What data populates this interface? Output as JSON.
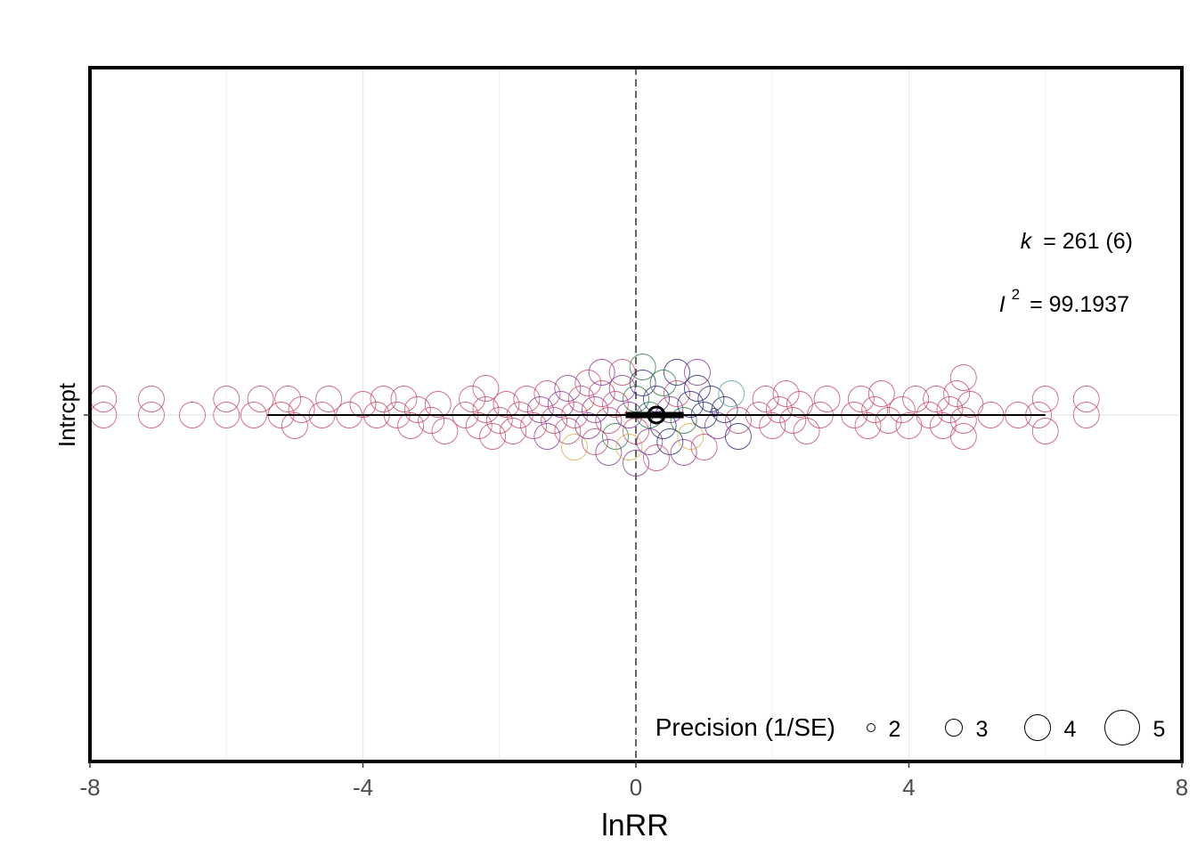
{
  "chart_data": {
    "type": "scatter",
    "subtype": "orchard-plot",
    "xlabel": "lnRR",
    "ylabel": "Intrcpt",
    "xlim": [
      -8,
      8
    ],
    "x_ticks": [
      "-8",
      "-4",
      "0",
      "4",
      "8"
    ],
    "y_categories": [
      "Intrcpt"
    ],
    "reference_line_x": 0,
    "grid": true,
    "estimate": {
      "mean": 0.3,
      "confidence_interval": [
        -0.15,
        0.7
      ],
      "prediction_interval": [
        -5.4,
        6.0
      ]
    },
    "annotations": {
      "k_label": "k",
      "k_value": "= 261 (6)",
      "i2_label": "I",
      "i2_sup": "2",
      "i2_value": "= 99.1937"
    },
    "legend": {
      "title": "Precision (1/SE)",
      "placement": "bottom-right",
      "sizes": [
        2,
        3,
        4,
        5
      ],
      "labels": [
        "2",
        "3",
        "4",
        "5"
      ]
    },
    "point_colors": [
      "#c94a6a",
      "#8b3a9c",
      "#2a2a7a",
      "#2e7d46",
      "#d4b24a",
      "#5aa0a0"
    ],
    "points": [
      {
        "x": -7.8,
        "p": 4,
        "c": 0
      },
      {
        "x": -7.8,
        "p": 4,
        "c": 0
      },
      {
        "x": -7.1,
        "p": 4,
        "c": 0
      },
      {
        "x": -7.1,
        "p": 4,
        "c": 0
      },
      {
        "x": -6.5,
        "p": 4,
        "c": 0
      },
      {
        "x": -6.0,
        "p": 4,
        "c": 0
      },
      {
        "x": -6.0,
        "p": 4,
        "c": 0
      },
      {
        "x": -5.6,
        "p": 4,
        "c": 0
      },
      {
        "x": -5.5,
        "p": 4,
        "c": 0
      },
      {
        "x": -5.2,
        "p": 4,
        "c": 0
      },
      {
        "x": -5.1,
        "p": 4,
        "c": 0
      },
      {
        "x": -5.0,
        "p": 4,
        "c": 0
      },
      {
        "x": -4.9,
        "p": 4,
        "c": 0
      },
      {
        "x": -4.6,
        "p": 4,
        "c": 0
      },
      {
        "x": -4.5,
        "p": 4,
        "c": 0
      },
      {
        "x": -4.2,
        "p": 4,
        "c": 0
      },
      {
        "x": -4.0,
        "p": 4,
        "c": 0
      },
      {
        "x": -3.8,
        "p": 4,
        "c": 0
      },
      {
        "x": -3.7,
        "p": 4,
        "c": 0
      },
      {
        "x": -3.5,
        "p": 4,
        "c": 0
      },
      {
        "x": -3.4,
        "p": 4,
        "c": 0
      },
      {
        "x": -3.3,
        "p": 4,
        "c": 0
      },
      {
        "x": -3.2,
        "p": 4,
        "c": 0
      },
      {
        "x": -3.0,
        "p": 4,
        "c": 0
      },
      {
        "x": -2.9,
        "p": 4,
        "c": 0
      },
      {
        "x": -2.8,
        "p": 4,
        "c": 0
      },
      {
        "x": -2.5,
        "p": 4,
        "c": 0
      },
      {
        "x": -2.4,
        "p": 4,
        "c": 0
      },
      {
        "x": -2.3,
        "p": 4,
        "c": 0
      },
      {
        "x": -2.2,
        "p": 4,
        "c": 0
      },
      {
        "x": -2.2,
        "p": 4,
        "c": 0
      },
      {
        "x": -2.1,
        "p": 4,
        "c": 0
      },
      {
        "x": -2.0,
        "p": 4,
        "c": 0
      },
      {
        "x": -1.9,
        "p": 4,
        "c": 0
      },
      {
        "x": -1.8,
        "p": 4,
        "c": 0
      },
      {
        "x": -1.7,
        "p": 4,
        "c": 0
      },
      {
        "x": -1.6,
        "p": 4,
        "c": 0
      },
      {
        "x": -1.5,
        "p": 4,
        "c": 0
      },
      {
        "x": -1.4,
        "p": 4,
        "c": 1
      },
      {
        "x": -1.3,
        "p": 4,
        "c": 0
      },
      {
        "x": -1.3,
        "p": 4,
        "c": 1
      },
      {
        "x": -1.2,
        "p": 4,
        "c": 0
      },
      {
        "x": -1.1,
        "p": 4,
        "c": 1
      },
      {
        "x": -1.0,
        "p": 4,
        "c": 0
      },
      {
        "x": -1.0,
        "p": 4,
        "c": 1
      },
      {
        "x": -0.9,
        "p": 4,
        "c": 0
      },
      {
        "x": -0.9,
        "p": 4,
        "c": 4
      },
      {
        "x": -0.8,
        "p": 4,
        "c": 0
      },
      {
        "x": -0.7,
        "p": 4,
        "c": 1
      },
      {
        "x": -0.7,
        "p": 4,
        "c": 0
      },
      {
        "x": -0.6,
        "p": 4,
        "c": 1
      },
      {
        "x": -0.6,
        "p": 4,
        "c": 0
      },
      {
        "x": -0.5,
        "p": 4,
        "c": 0
      },
      {
        "x": -0.5,
        "p": 4,
        "c": 1
      },
      {
        "x": -0.4,
        "p": 4,
        "c": 0
      },
      {
        "x": -0.4,
        "p": 4,
        "c": 1
      },
      {
        "x": -0.3,
        "p": 4,
        "c": 0
      },
      {
        "x": -0.3,
        "p": 4,
        "c": 3
      },
      {
        "x": -0.2,
        "p": 4,
        "c": 1
      },
      {
        "x": -0.2,
        "p": 4,
        "c": 0
      },
      {
        "x": -0.1,
        "p": 4,
        "c": 1
      },
      {
        "x": -0.1,
        "p": 4,
        "c": 4
      },
      {
        "x": 0.0,
        "p": 4,
        "c": 3
      },
      {
        "x": 0.0,
        "p": 4,
        "c": 0
      },
      {
        "x": 0.0,
        "p": 4,
        "c": 1
      },
      {
        "x": 0.1,
        "p": 4,
        "c": 2
      },
      {
        "x": 0.1,
        "p": 4,
        "c": 3
      },
      {
        "x": 0.2,
        "p": 4,
        "c": 3
      },
      {
        "x": 0.2,
        "p": 4,
        "c": 1
      },
      {
        "x": 0.3,
        "p": 4,
        "c": 2
      },
      {
        "x": 0.3,
        "p": 4,
        "c": 0
      },
      {
        "x": 0.35,
        "p": 2,
        "c": 1
      },
      {
        "x": 0.4,
        "p": 4,
        "c": 2
      },
      {
        "x": 0.4,
        "p": 4,
        "c": 3
      },
      {
        "x": 0.5,
        "p": 4,
        "c": 1
      },
      {
        "x": 0.5,
        "p": 4,
        "c": 2
      },
      {
        "x": 0.6,
        "p": 4,
        "c": 0
      },
      {
        "x": 0.6,
        "p": 4,
        "c": 2
      },
      {
        "x": 0.7,
        "p": 4,
        "c": 3
      },
      {
        "x": 0.7,
        "p": 4,
        "c": 1
      },
      {
        "x": 0.8,
        "p": 4,
        "c": 2
      },
      {
        "x": 0.8,
        "p": 4,
        "c": 4
      },
      {
        "x": 0.9,
        "p": 4,
        "c": 2
      },
      {
        "x": 0.9,
        "p": 4,
        "c": 1
      },
      {
        "x": 1.0,
        "p": 4,
        "c": 2
      },
      {
        "x": 1.0,
        "p": 4,
        "c": 0
      },
      {
        "x": 1.1,
        "p": 4,
        "c": 2
      },
      {
        "x": 1.15,
        "p": 2,
        "c": 2
      },
      {
        "x": 1.2,
        "p": 4,
        "c": 1
      },
      {
        "x": 1.3,
        "p": 4,
        "c": 2
      },
      {
        "x": 1.4,
        "p": 4,
        "c": 5
      },
      {
        "x": 1.5,
        "p": 4,
        "c": 0
      },
      {
        "x": 1.5,
        "p": 4,
        "c": 2
      },
      {
        "x": 1.8,
        "p": 4,
        "c": 0
      },
      {
        "x": 1.9,
        "p": 4,
        "c": 0
      },
      {
        "x": 2.0,
        "p": 4,
        "c": 0
      },
      {
        "x": 2.1,
        "p": 4,
        "c": 0
      },
      {
        "x": 2.2,
        "p": 4,
        "c": 0
      },
      {
        "x": 2.3,
        "p": 4,
        "c": 0
      },
      {
        "x": 2.4,
        "p": 4,
        "c": 0
      },
      {
        "x": 2.5,
        "p": 4,
        "c": 0
      },
      {
        "x": 2.7,
        "p": 4,
        "c": 0
      },
      {
        "x": 2.8,
        "p": 4,
        "c": 0
      },
      {
        "x": 3.2,
        "p": 4,
        "c": 0
      },
      {
        "x": 3.3,
        "p": 4,
        "c": 0
      },
      {
        "x": 3.4,
        "p": 4,
        "c": 0
      },
      {
        "x": 3.5,
        "p": 4,
        "c": 0
      },
      {
        "x": 3.6,
        "p": 4,
        "c": 0
      },
      {
        "x": 3.7,
        "p": 4,
        "c": 0
      },
      {
        "x": 3.9,
        "p": 4,
        "c": 0
      },
      {
        "x": 4.0,
        "p": 4,
        "c": 0
      },
      {
        "x": 4.1,
        "p": 4,
        "c": 0
      },
      {
        "x": 4.3,
        "p": 4,
        "c": 0
      },
      {
        "x": 4.4,
        "p": 4,
        "c": 0
      },
      {
        "x": 4.5,
        "p": 4,
        "c": 0
      },
      {
        "x": 4.6,
        "p": 4,
        "c": 0
      },
      {
        "x": 4.7,
        "p": 4,
        "c": 0
      },
      {
        "x": 4.8,
        "p": 4,
        "c": 0
      },
      {
        "x": 4.8,
        "p": 4,
        "c": 0
      },
      {
        "x": 4.8,
        "p": 4,
        "c": 0
      },
      {
        "x": 4.9,
        "p": 4,
        "c": 0
      },
      {
        "x": 5.2,
        "p": 4,
        "c": 0
      },
      {
        "x": 5.6,
        "p": 4,
        "c": 0
      },
      {
        "x": 5.9,
        "p": 4,
        "c": 0
      },
      {
        "x": 6.0,
        "p": 4,
        "c": 0
      },
      {
        "x": 6.0,
        "p": 4,
        "c": 0
      },
      {
        "x": 6.6,
        "p": 4,
        "c": 0
      },
      {
        "x": 6.6,
        "p": 4,
        "c": 0
      }
    ]
  }
}
